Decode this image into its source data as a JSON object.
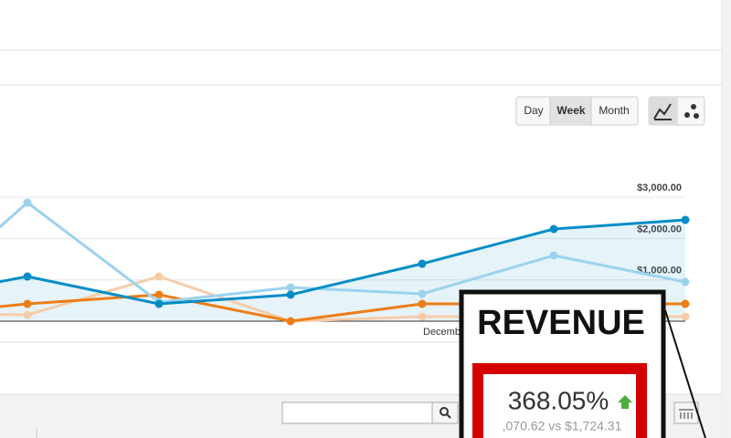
{
  "toolbar": {
    "buttons": [
      "Day",
      "Week",
      "Month"
    ]
  },
  "chart_data": {
    "type": "line",
    "categories": [
      null,
      null,
      null,
      null,
      "December",
      null,
      null
    ],
    "series": [
      {
        "color": "#058dc7",
        "values": [
          486,
          1081,
          419,
          640,
          1390,
          2229,
          2450
        ],
        "area": true
      },
      {
        "color": "#9bd3ef",
        "values": [
          44,
          2869,
          463,
          817,
          662,
          1589,
          949
        ]
      },
      {
        "color": "#ed7e17",
        "values": [
          100,
          419,
          640,
          0,
          419,
          419,
          419
        ]
      },
      {
        "color": "#f6cca8",
        "values": [
          200,
          154,
          1081,
          0,
          110,
          110,
          110
        ]
      }
    ],
    "ylim": [
      0,
      3200
    ],
    "yticks": [
      {
        "value": 1000,
        "label": "$1,000.00"
      },
      {
        "value": 2000,
        "label": "$2,000.00"
      },
      {
        "value": 3000,
        "label": "$3,000.00"
      }
    ],
    "grid": true
  },
  "callout": {
    "title": "REVENUE",
    "change": "368.05%",
    "comparison": ",070.62 vs $1,724.31"
  }
}
